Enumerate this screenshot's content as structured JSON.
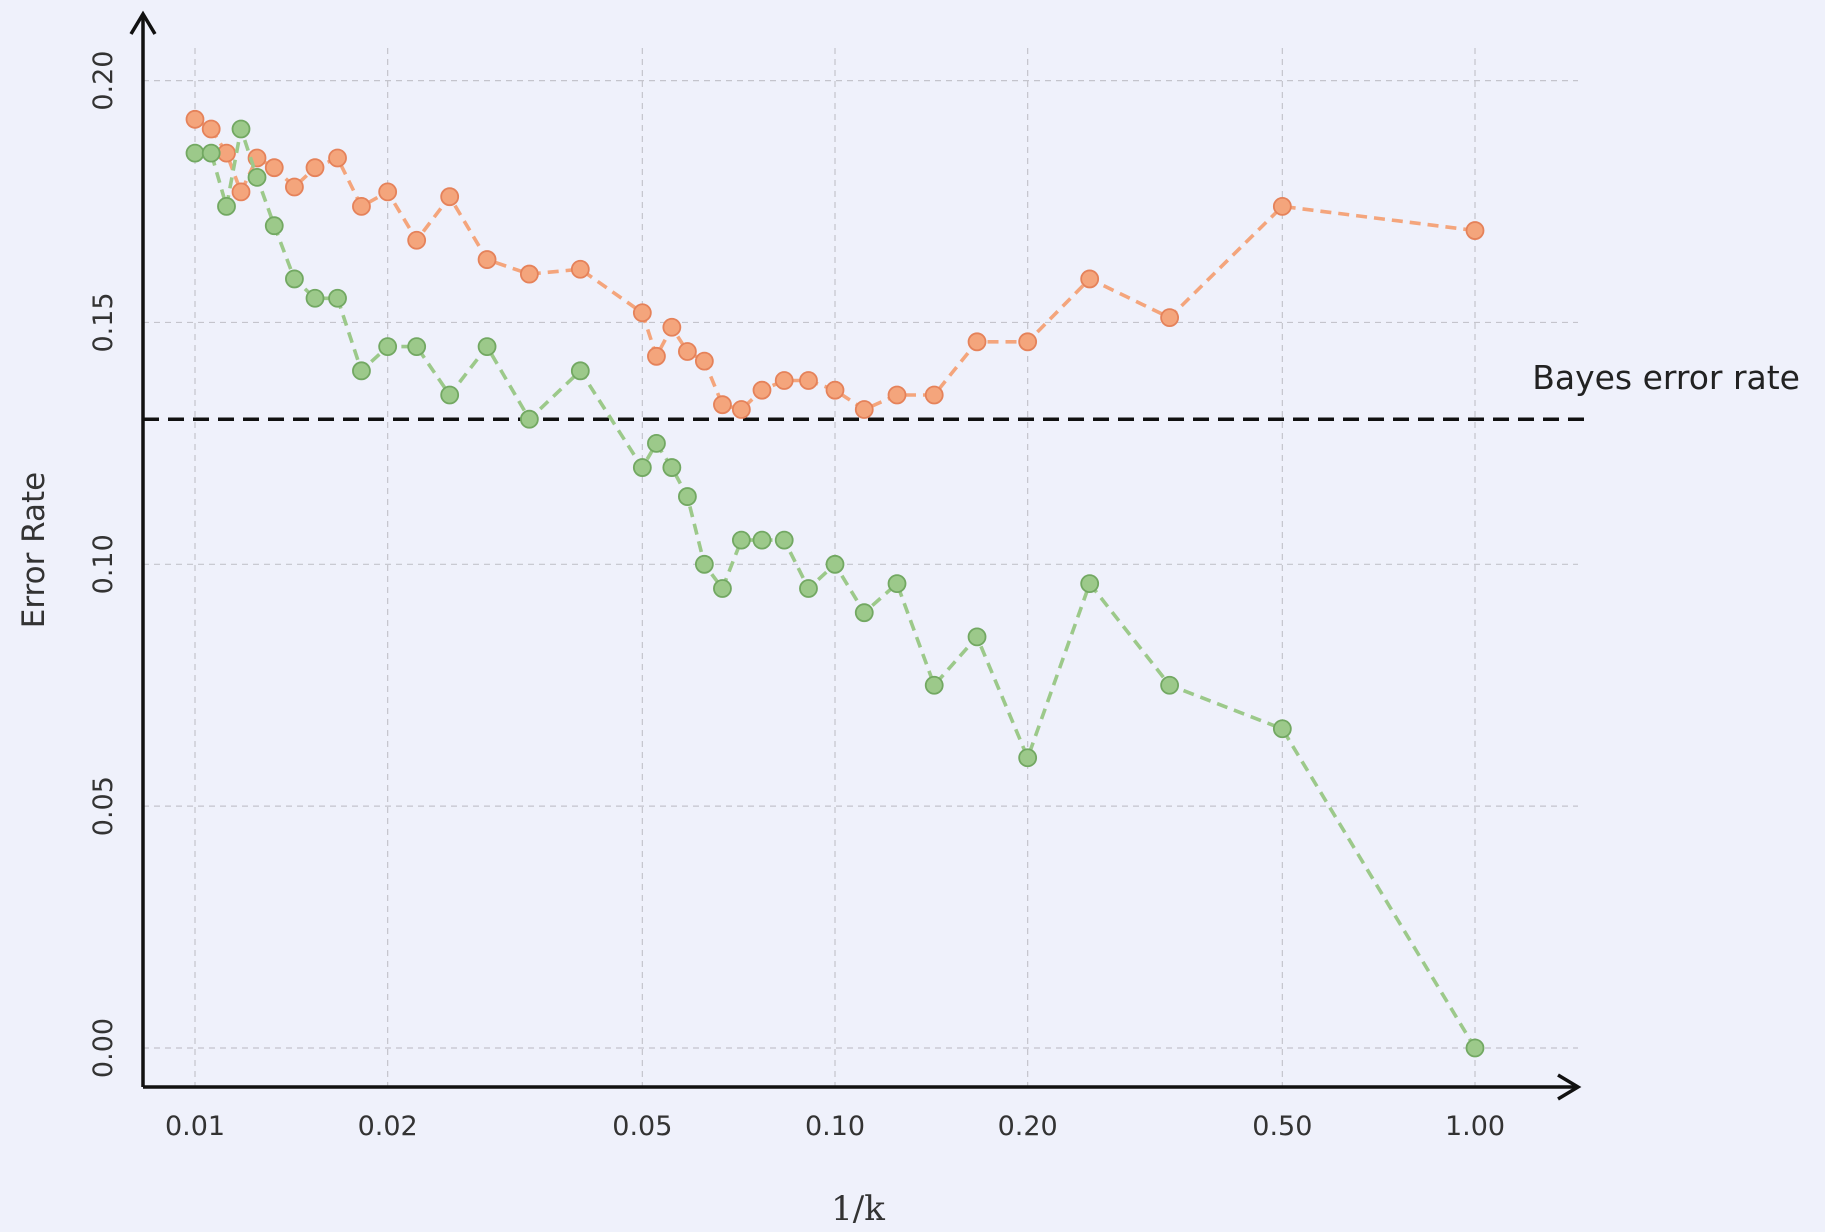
{
  "chart_data": {
    "type": "line",
    "xlabel": "1/k",
    "ylabel": "Error Rate",
    "x_scale": "log",
    "xlim": [
      0.009,
      1.4
    ],
    "ylim": [
      -0.008,
      0.2
    ],
    "x_ticks": [
      0.01,
      0.02,
      0.05,
      0.1,
      0.2,
      0.5,
      1.0
    ],
    "x_tick_labels": [
      "0.01",
      "0.02",
      "0.05",
      "0.10",
      "0.20",
      "0.50",
      "1.00"
    ],
    "y_ticks": [
      0.0,
      0.05,
      0.1,
      0.15,
      0.2
    ],
    "y_tick_labels": [
      "0.00",
      "0.05",
      "0.10",
      "0.15",
      "0.20"
    ],
    "grid": true,
    "colors": {
      "test": "#f4a57c",
      "test_edge": "#e5825a",
      "train": "#9cc98a",
      "train_edge": "#72a862",
      "bayes": "#111111",
      "axis": "#111111"
    },
    "series": [
      {
        "key": "test",
        "x": [
          0.01,
          0.0106,
          0.0112,
          0.0118,
          0.0125,
          0.0133,
          0.0143,
          0.0154,
          0.0167,
          0.0182,
          0.02,
          0.0222,
          0.025,
          0.0286,
          0.0333,
          0.04,
          0.05,
          0.0526,
          0.0556,
          0.0588,
          0.0625,
          0.0667,
          0.0714,
          0.0769,
          0.0833,
          0.0909,
          0.1,
          0.1111,
          0.125,
          0.1429,
          0.1667,
          0.2,
          0.25,
          0.3333,
          0.5,
          1.0
        ],
        "y": [
          0.192,
          0.19,
          0.185,
          0.177,
          0.184,
          0.182,
          0.178,
          0.182,
          0.184,
          0.174,
          0.177,
          0.167,
          0.176,
          0.163,
          0.16,
          0.161,
          0.152,
          0.143,
          0.149,
          0.144,
          0.142,
          0.133,
          0.132,
          0.136,
          0.138,
          0.138,
          0.136,
          0.132,
          0.135,
          0.135,
          0.146,
          0.146,
          0.159,
          0.151,
          0.174,
          0.169
        ]
      },
      {
        "key": "train",
        "x": [
          0.01,
          0.0106,
          0.0112,
          0.0118,
          0.0125,
          0.0133,
          0.0143,
          0.0154,
          0.0167,
          0.0182,
          0.02,
          0.0222,
          0.025,
          0.0286,
          0.0333,
          0.04,
          0.05,
          0.0526,
          0.0556,
          0.0588,
          0.0625,
          0.0667,
          0.0714,
          0.0769,
          0.0833,
          0.0909,
          0.1,
          0.1111,
          0.125,
          0.1429,
          0.1667,
          0.2,
          0.25,
          0.3333,
          0.5,
          1.0
        ],
        "y": [
          0.185,
          0.185,
          0.174,
          0.19,
          0.18,
          0.17,
          0.159,
          0.155,
          0.155,
          0.14,
          0.145,
          0.145,
          0.135,
          0.145,
          0.13,
          0.14,
          0.12,
          0.125,
          0.12,
          0.114,
          0.1,
          0.095,
          0.105,
          0.105,
          0.105,
          0.095,
          0.1,
          0.09,
          0.096,
          0.075,
          0.085,
          0.06,
          0.096,
          0.075,
          0.066,
          0.0
        ]
      }
    ],
    "bayes_error": {
      "value": 0.13,
      "label": "Bayes error rate"
    }
  }
}
